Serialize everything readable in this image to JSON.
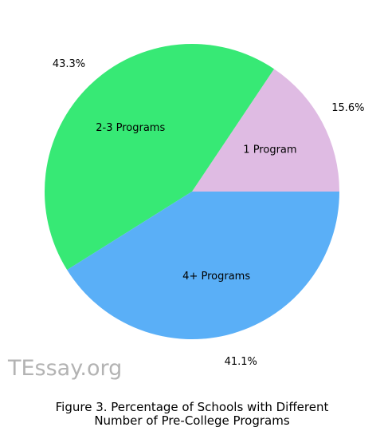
{
  "chart_data": {
    "type": "pie",
    "title": "",
    "slices": [
      {
        "label": "1 Program",
        "value": 15.6,
        "pct_text": "15.6%",
        "color": "#dfbbe3"
      },
      {
        "label": "2-3 Programs",
        "value": 43.3,
        "pct_text": "43.3%",
        "color": "#37e975"
      },
      {
        "label": "4+ Programs",
        "value": 41.1,
        "pct_text": "41.1%",
        "color": "#5aaff7"
      }
    ],
    "start_angle_deg": 0,
    "direction": "counterclockwise"
  },
  "watermark": "TEssay.org",
  "caption": {
    "line1": "Figure 3. Percentage of Schools with Different",
    "line2": "Number of Pre-College Programs"
  }
}
